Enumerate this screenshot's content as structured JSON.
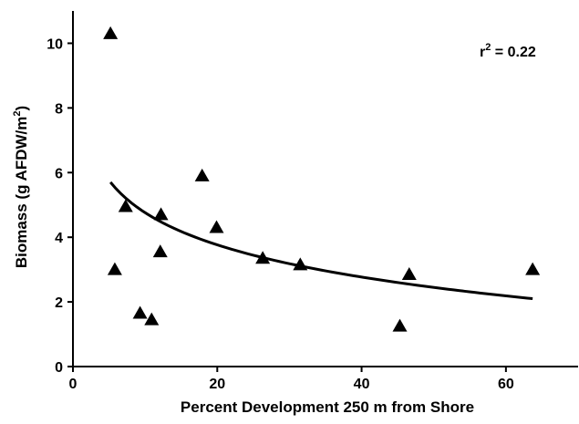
{
  "chart_data": {
    "type": "scatter",
    "title": "",
    "xlabel": "Percent Development 250 m from Shore",
    "ylabel_main": "Biomass (g AFDW/m",
    "ylabel_sup": "2",
    "ylabel_close": ")",
    "xlim": [
      0,
      70
    ],
    "ylim": [
      0,
      11
    ],
    "x_ticks": [
      0,
      20,
      40,
      60
    ],
    "y_ticks": [
      0,
      2,
      4,
      6,
      8,
      10
    ],
    "grid": false,
    "legend": "none",
    "annotation": {
      "prefix": "r",
      "sup": "2",
      "suffix": " = 0.22"
    },
    "marker": "filled-triangle",
    "color": "#000000",
    "points": [
      {
        "x": 5.2,
        "y": 10.3
      },
      {
        "x": 5.8,
        "y": 3.0
      },
      {
        "x": 7.3,
        "y": 4.95
      },
      {
        "x": 9.3,
        "y": 1.65
      },
      {
        "x": 10.9,
        "y": 1.45
      },
      {
        "x": 12.2,
        "y": 4.7
      },
      {
        "x": 12.1,
        "y": 3.55
      },
      {
        "x": 17.9,
        "y": 5.9
      },
      {
        "x": 19.9,
        "y": 4.3
      },
      {
        "x": 26.3,
        "y": 3.35
      },
      {
        "x": 31.5,
        "y": 3.15
      },
      {
        "x": 45.3,
        "y": 1.25
      },
      {
        "x": 46.6,
        "y": 2.85
      },
      {
        "x": 63.7,
        "y": 3.0
      }
    ],
    "fit_curve": {
      "type": "logarithmic",
      "x_range": [
        5.2,
        63.7
      ],
      "y_at_start": 5.7,
      "y_at_end": 2.1
    }
  }
}
